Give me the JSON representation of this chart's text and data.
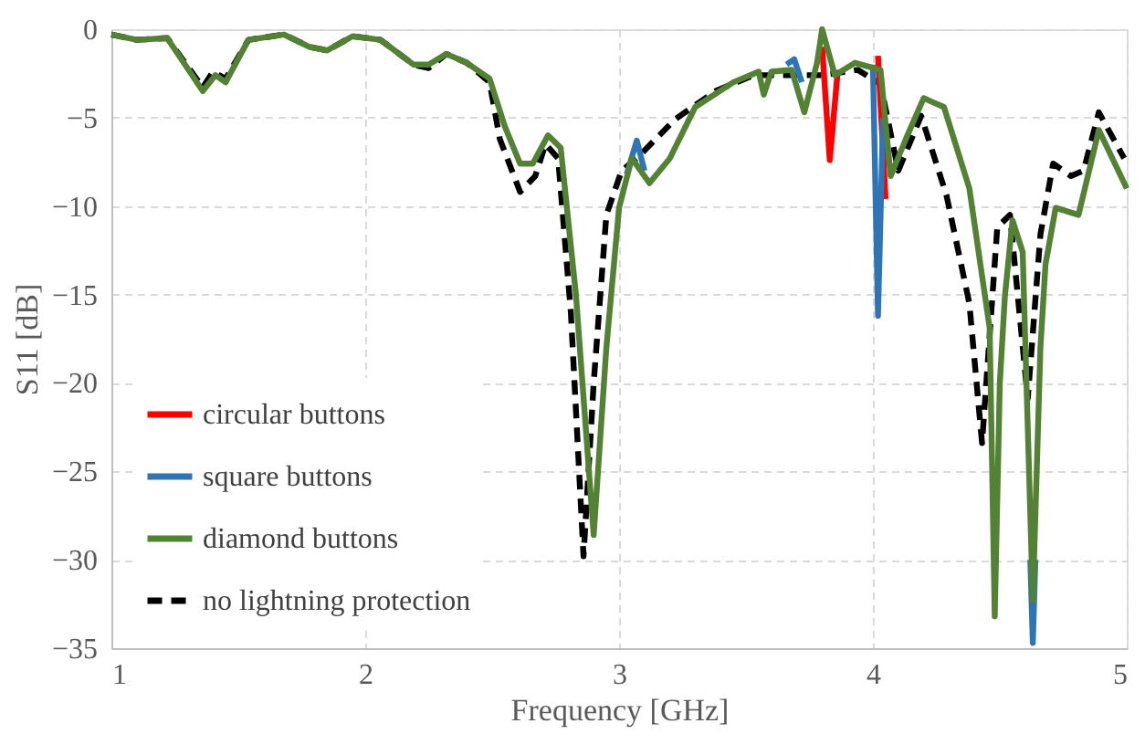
{
  "chart_data": {
    "type": "line",
    "xlabel": "Frequency [GHz]",
    "ylabel": "S11 [dB]",
    "xlim": [
      1,
      5
    ],
    "xticks": [
      1,
      2,
      3,
      4,
      5
    ],
    "ylim": [
      -35,
      0
    ],
    "yticks": [
      -35,
      -30,
      -25,
      -20,
      -15,
      -10,
      -5,
      0
    ],
    "grid": true,
    "legend": "bottom left",
    "line_style": "solid",
    "marker": "none",
    "series": [
      {
        "name": "circular buttons",
        "color": "#ff0000",
        "x": [
          3.8,
          3.83,
          3.86,
          3.95,
          4.02,
          4.05
        ],
        "values": [
          -1.0,
          -7.4,
          -2.6,
          null,
          -1.5,
          -9.6
        ]
      },
      {
        "name": "square buttons",
        "color": "#2e75b6",
        "x": [
          3.03,
          3.07,
          3.1,
          3.4,
          3.66,
          3.69,
          3.72,
          3.9,
          4.0,
          4.02,
          4.04,
          4.3,
          4.62,
          4.63,
          4.64
        ],
        "values": [
          -8.2,
          -6.3,
          -8.0,
          null,
          -2.0,
          -1.7,
          -3.0,
          null,
          -2.0,
          -16.2,
          -5.0,
          null,
          -30,
          -34.7,
          -30
        ]
      },
      {
        "name": "diamond buttons",
        "color": "#548235",
        "x": [
          1.0,
          1.1,
          1.22,
          1.36,
          1.41,
          1.45,
          1.54,
          1.68,
          1.78,
          1.85,
          1.95,
          2.06,
          2.19,
          2.25,
          2.32,
          2.4,
          2.49,
          2.55,
          2.61,
          2.66,
          2.72,
          2.77,
          2.83,
          2.9,
          2.95,
          3.0,
          3.05,
          3.12,
          3.2,
          3.3,
          3.45,
          3.55,
          3.57,
          3.6,
          3.68,
          3.73,
          3.78,
          3.8,
          3.85,
          3.93,
          4.03,
          4.07,
          4.13,
          4.2,
          4.28,
          4.38,
          4.46,
          4.48,
          4.5,
          4.52,
          4.55,
          4.59,
          4.63,
          4.66,
          4.68,
          4.72,
          4.81,
          4.89,
          5.0
        ],
        "values": [
          -0.3,
          -0.6,
          -0.5,
          -3.5,
          -2.6,
          -3.0,
          -0.6,
          -0.3,
          -1.0,
          -1.2,
          -0.4,
          -0.6,
          -2.0,
          -2.0,
          -1.4,
          -1.9,
          -2.8,
          -5.5,
          -7.6,
          -7.6,
          -6.0,
          -6.7,
          -15,
          -28.6,
          -18,
          -10.1,
          -7.3,
          -8.7,
          -7.3,
          -4.4,
          -3.0,
          -2.4,
          -3.7,
          -2.4,
          -2.3,
          -4.7,
          -1.9,
          0,
          -2.6,
          -1.9,
          -2.3,
          -8.3,
          -6.2,
          -3.9,
          -4.4,
          -9.0,
          -16.9,
          -33.2,
          -20,
          -15.1,
          -10.8,
          -12.6,
          -32.3,
          -18,
          -13.3,
          -10.1,
          -10.5,
          -5.7,
          -9.0
        ]
      },
      {
        "name": "no lightning protection",
        "color": "#000000",
        "line_style": "dashed",
        "x": [
          1.0,
          1.1,
          1.22,
          1.36,
          1.4,
          1.45,
          1.54,
          1.68,
          1.78,
          1.85,
          1.95,
          2.06,
          2.19,
          2.25,
          2.32,
          2.4,
          2.49,
          2.53,
          2.61,
          2.67,
          2.71,
          2.76,
          2.81,
          2.86,
          2.9,
          2.95,
          3.01,
          3.07,
          3.22,
          3.38,
          3.53,
          3.68,
          3.8,
          3.94,
          4.03,
          4.1,
          4.19,
          4.29,
          4.38,
          4.43,
          4.49,
          4.54,
          4.61,
          4.66,
          4.71,
          4.78,
          4.83,
          4.89,
          4.99
        ],
        "values": [
          -0.3,
          -0.6,
          -0.5,
          -3.3,
          -2.4,
          -2.8,
          -0.6,
          -0.3,
          -1.0,
          -1.2,
          -0.4,
          -0.6,
          -2.0,
          -2.2,
          -1.4,
          -1.9,
          -3.0,
          -6.2,
          -9.2,
          -8.3,
          -6.5,
          -7.3,
          -16,
          -29.8,
          -20,
          -10.5,
          -8.0,
          -7.3,
          -5.1,
          -3.5,
          -2.6,
          -2.6,
          -2.6,
          -2.3,
          -3.1,
          -8.0,
          -4.9,
          -9.4,
          -15.5,
          -23.4,
          -11.2,
          -10.5,
          -20.9,
          -11.6,
          -7.6,
          -8.3,
          -8.0,
          -4.7,
          -7.3
        ]
      }
    ]
  }
}
